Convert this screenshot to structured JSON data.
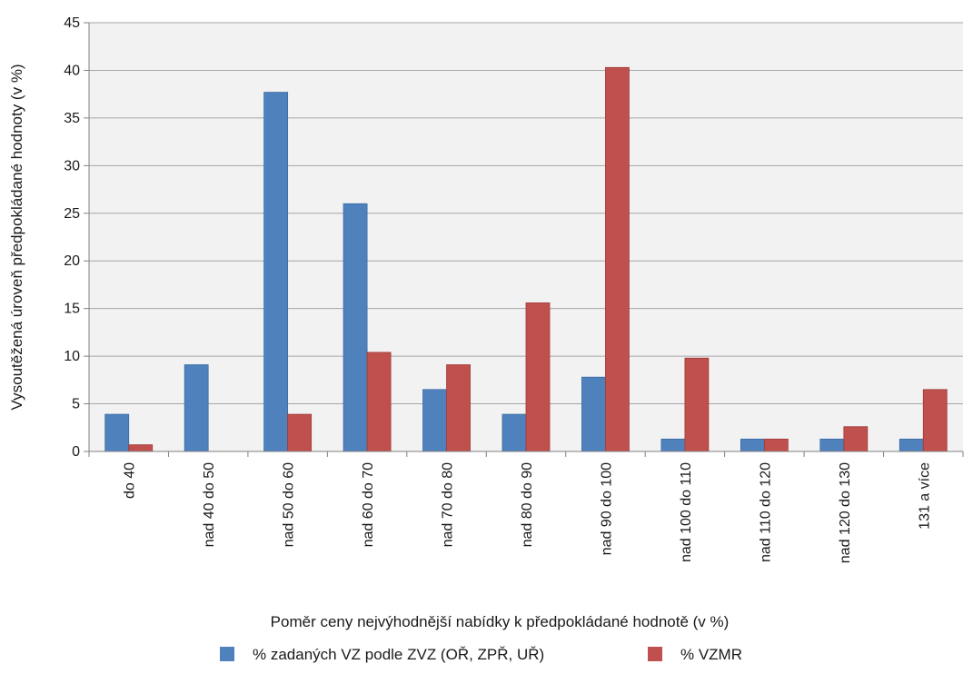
{
  "chart_data": {
    "type": "bar",
    "xlabel": "Poměr ceny nejvýhodnější nabídky k předpokládané hodnotě (v %)",
    "ylabel": "Vysoutěžená úroveň předpokládané hodnoty (v %)",
    "ylim": [
      0,
      45
    ],
    "yticks": [
      0,
      5,
      10,
      15,
      20,
      25,
      30,
      35,
      40,
      45
    ],
    "categories": [
      "do 40",
      "nad 40 do 50",
      "nad 50 do 60",
      "nad 60 do 70",
      "nad 70 do 80",
      "nad 80 do 90",
      "nad 90 do 100",
      "nad 100 do 110",
      "nad 110 do 120",
      "nad 120 do 130",
      "131 a více"
    ],
    "series": [
      {
        "name": "% zadaných VZ podle ZVZ (OŘ, ZPŘ, UŘ)",
        "color": "#4F81BD",
        "values": [
          3.9,
          9.1,
          37.7,
          26.0,
          6.5,
          3.9,
          7.8,
          1.3,
          1.3,
          1.3,
          1.3
        ]
      },
      {
        "name": "% VZMR",
        "color": "#C0504D",
        "values": [
          0.7,
          0,
          3.9,
          10.4,
          9.1,
          15.6,
          40.3,
          9.8,
          1.3,
          2.6,
          6.5
        ]
      }
    ],
    "grid": true,
    "legend_position": "bottom",
    "colors": {
      "plot_background": "#F2F2F2",
      "gridline": "#A6A6A6",
      "axis": "#808080"
    }
  }
}
